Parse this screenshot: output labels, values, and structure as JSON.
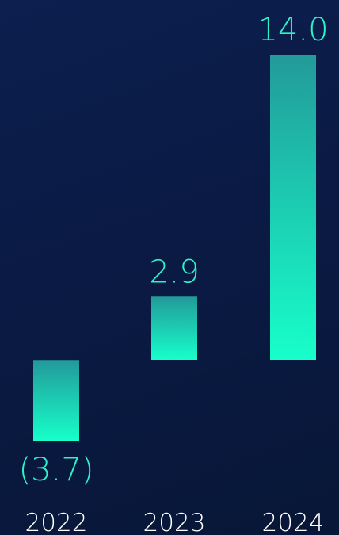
{
  "chart_data": {
    "type": "bar",
    "categories": [
      "2022",
      "2023",
      "2024"
    ],
    "values": [
      -3.7,
      2.9,
      14.0
    ],
    "data_labels": [
      "(3.7)",
      "2.9",
      "14.0"
    ],
    "title": "",
    "xlabel": "",
    "ylabel": "",
    "ylim": [
      -3.7,
      14.0
    ],
    "grid": false,
    "legend": "none",
    "colors": {
      "bar_top": "#229a9a",
      "bar_bottom": "#17ffca",
      "label": "#2ef2c9",
      "tick": "#ffffff",
      "background": "#0a1a44"
    }
  }
}
